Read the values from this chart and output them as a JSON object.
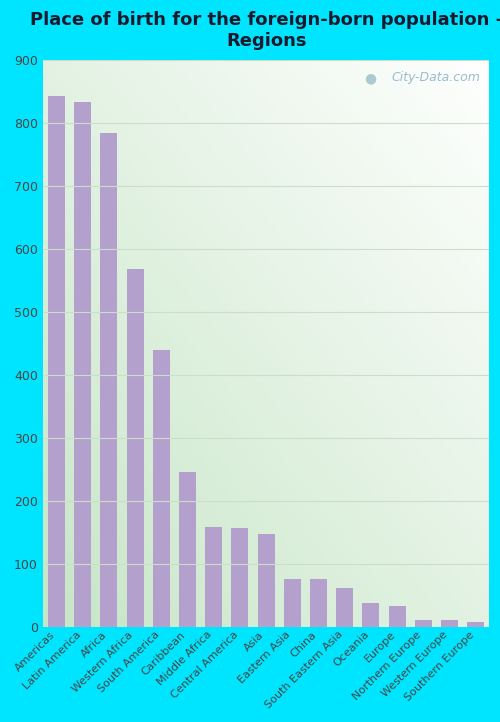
{
  "title": "Place of birth for the foreign-born population -\nRegions",
  "categories": [
    "Americas",
    "Latin America",
    "Africa",
    "Western Africa",
    "South America",
    "Caribbean",
    "Middle Africa",
    "Central America",
    "Asia",
    "Eastern Asia",
    "China",
    "South Eastern Asia",
    "Oceania",
    "Europe",
    "Northern Europe",
    "Western Europe",
    "Southern Europe"
  ],
  "values": [
    843,
    833,
    783,
    568,
    440,
    245,
    158,
    156,
    147,
    76,
    75,
    62,
    38,
    33,
    10,
    10,
    7
  ],
  "bar_color": "#b3a0cc",
  "bg_fig": "#00e5ff",
  "ylabel_color": "#444444",
  "title_color": "#1a1a2e",
  "yticks": [
    0,
    100,
    200,
    300,
    400,
    500,
    600,
    700,
    800,
    900
  ],
  "ylim": [
    0,
    900
  ],
  "grid_color": "#ccddcc",
  "watermark": "City-Data.com",
  "title_fontsize": 13,
  "tick_fontsize": 9,
  "xtick_fontsize": 8
}
